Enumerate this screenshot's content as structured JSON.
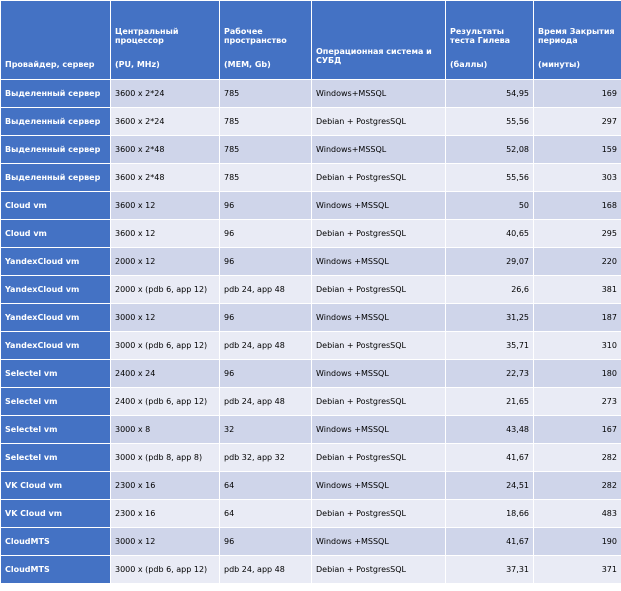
{
  "table": {
    "header": [
      {
        "title": "Провайдер, сервер"
      },
      {
        "title": "Центральный процессор",
        "unit": "(PU, MHz)"
      },
      {
        "title": "Рабочее пространство",
        "unit": "(MEM, Gb)"
      },
      {
        "title": "Операционная  система и СУБД"
      },
      {
        "title": "Результаты теста Гилева",
        "unit": "(баллы)"
      },
      {
        "title": "Время Закрытия периода",
        "unit": "(минуты)"
      }
    ],
    "rows": [
      [
        "Выделенный сервер",
        "3600 x 2*24",
        "785",
        "Windows+MSSQL",
        "54,95",
        "169"
      ],
      [
        "Выделенный сервер",
        "3600 x 2*24",
        "785",
        "Debian + PostgresSQL",
        "55,56",
        "297"
      ],
      [
        "Выделенный сервер",
        "3600 x 2*48",
        "785",
        "Windows+MSSQL",
        "52,08",
        "159"
      ],
      [
        "Выделенный сервер",
        "3600 x 2*48",
        "785",
        "Debian + PostgresSQL",
        "55,56",
        "303"
      ],
      [
        "Cloud vm",
        "3600 x 12",
        "96",
        "Windows +MSSQL",
        "50",
        "168"
      ],
      [
        "Cloud vm",
        "3600 x 12",
        "96",
        "Debian + PostgresSQL",
        "40,65",
        "295"
      ],
      [
        "YandexCloud vm",
        "2000 x 12",
        "96",
        "Windows +MSSQL",
        "29,07",
        "220"
      ],
      [
        "YandexCloud vm",
        "2000 x (pdb 6, app 12)",
        "pdb 24, app 48",
        "Debian + PostgresSQL",
        "26,6",
        "381"
      ],
      [
        "YandexCloud vm",
        "3000 x 12",
        "96",
        "Windows +MSSQL",
        "31,25",
        "187"
      ],
      [
        "YandexCloud vm",
        "3000 x (pdb 6, app 12)",
        "pdb 24, app 48",
        "Debian + PostgresSQL",
        "35,71",
        "310"
      ],
      [
        "Selectel vm",
        "2400 x 24",
        "96",
        "Windows +MSSQL",
        "22,73",
        "180"
      ],
      [
        "Selectel vm",
        "2400 x (pdb 6, app 12)",
        "pdb 24, app 48",
        "Debian + PostgresSQL",
        "21,65",
        "273"
      ],
      [
        "Selectel vm",
        "3000 x 8",
        "32",
        "Windows +MSSQL",
        "43,48",
        "167"
      ],
      [
        "Selectel vm",
        "3000 x (pdb 8, app 8)",
        "pdb 32, app 32",
        "Debian + PostgresSQL",
        "41,67",
        "282"
      ],
      [
        "VK Cloud vm",
        "2300 x 16",
        "64",
        "Windows +MSSQL",
        "24,51",
        "282"
      ],
      [
        "VK Cloud vm",
        "2300 x 16",
        "64",
        "Debian + PostgresSQL",
        "18,66",
        "483"
      ],
      [
        "CloudMTS",
        "3000 x 12",
        "96",
        "Windows +MSSQL",
        "41,67",
        "190"
      ],
      [
        "CloudMTS",
        "3000 x (pdb 6, app 12)",
        "pdb 24, app 48",
        "Debian + PostgresSQL",
        "37,31",
        "371"
      ]
    ]
  }
}
